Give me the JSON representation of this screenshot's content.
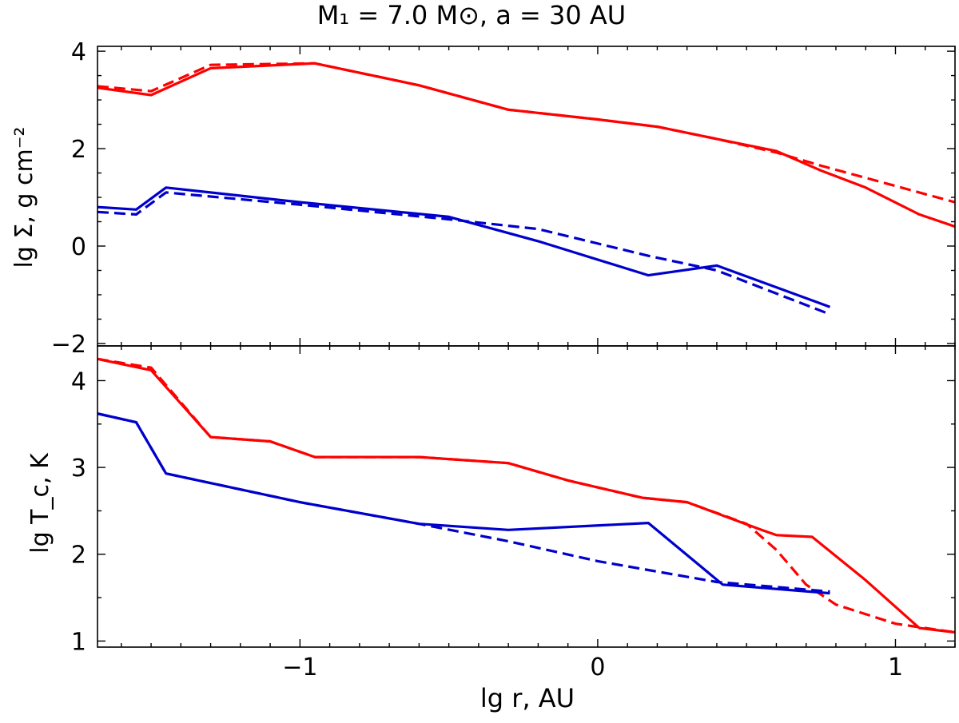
{
  "figure": {
    "title": "M₁ = 7.0 M⊙, a = 30 AU",
    "xlabel": "lg r, AU"
  },
  "chart_data": [
    {
      "type": "line",
      "ylabel": "lg Σ, g cm⁻²",
      "xlim": [
        -1.68,
        1.2
      ],
      "ylim": [
        -2.05,
        4.1
      ],
      "xticks": [
        -1,
        0,
        1
      ],
      "xtick_labels": [],
      "yticks": [
        -2,
        0,
        2,
        4
      ],
      "ytick_labels": [
        "−2",
        "0",
        "2",
        "4"
      ],
      "grid": false,
      "series": [
        {
          "color": "#ff0000",
          "style": "solid",
          "x": [
            -1.68,
            -1.5,
            -1.3,
            -0.95,
            -0.6,
            -0.3,
            0,
            0.2,
            0.4,
            0.6,
            0.75,
            0.9,
            1.08,
            1.2
          ],
          "y": [
            3.25,
            3.1,
            3.65,
            3.75,
            3.3,
            2.8,
            2.6,
            2.45,
            2.2,
            1.95,
            1.55,
            1.2,
            0.65,
            0.4
          ]
        },
        {
          "color": "#ff0000",
          "style": "dashed",
          "x": [
            -1.68,
            -1.5,
            -1.3,
            -0.95,
            -0.6,
            -0.3,
            0,
            0.2,
            0.4,
            0.6,
            0.75,
            0.9,
            1.08,
            1.2
          ],
          "y": [
            3.28,
            3.18,
            3.72,
            3.75,
            3.3,
            2.8,
            2.6,
            2.45,
            2.2,
            1.92,
            1.65,
            1.4,
            1.1,
            0.9
          ]
        },
        {
          "color": "#0000cc",
          "style": "solid",
          "x": [
            -1.68,
            -1.55,
            -1.45,
            -1.0,
            -0.5,
            -0.2,
            0.17,
            0.4,
            0.78
          ],
          "y": [
            0.8,
            0.75,
            1.2,
            0.9,
            0.6,
            0.1,
            -0.6,
            -0.4,
            -1.25
          ]
        },
        {
          "color": "#0000cc",
          "style": "dashed",
          "x": [
            -1.68,
            -1.55,
            -1.45,
            -1.0,
            -0.5,
            -0.2,
            0.17,
            0.4,
            0.78
          ],
          "y": [
            0.7,
            0.65,
            1.1,
            0.85,
            0.55,
            0.35,
            -0.2,
            -0.5,
            -1.4
          ]
        }
      ]
    },
    {
      "type": "line",
      "ylabel": "lg T_c, K",
      "xlim": [
        -1.68,
        1.2
      ],
      "ylim": [
        0.93,
        4.4
      ],
      "xticks": [
        -1,
        0,
        1
      ],
      "xtick_labels": [
        "−1",
        "0",
        "1"
      ],
      "yticks": [
        1,
        2,
        3,
        4
      ],
      "ytick_labels": [
        "1",
        "2",
        "3",
        "4"
      ],
      "grid": false,
      "series": [
        {
          "color": "#ff0000",
          "style": "solid",
          "x": [
            -1.68,
            -1.5,
            -1.3,
            -1.1,
            -0.95,
            -0.6,
            -0.3,
            -0.1,
            0.15,
            0.3,
            0.55,
            0.6,
            0.72,
            0.9,
            1.08,
            1.2
          ],
          "y": [
            4.25,
            4.12,
            3.35,
            3.3,
            3.12,
            3.12,
            3.05,
            2.85,
            2.65,
            2.6,
            2.28,
            2.22,
            2.2,
            1.7,
            1.15,
            1.1
          ]
        },
        {
          "color": "#ff0000",
          "style": "dashed",
          "x": [
            -1.68,
            -1.5,
            -1.3,
            -1.1,
            -0.95,
            -0.6,
            -0.3,
            -0.1,
            0.15,
            0.3,
            0.5,
            0.6,
            0.7,
            0.8,
            1.0,
            1.2
          ],
          "y": [
            4.25,
            4.15,
            3.35,
            3.3,
            3.12,
            3.12,
            3.05,
            2.85,
            2.65,
            2.6,
            2.35,
            2.05,
            1.65,
            1.42,
            1.2,
            1.1
          ]
        },
        {
          "color": "#0000cc",
          "style": "solid",
          "x": [
            -1.68,
            -1.55,
            -1.45,
            -1.0,
            -0.6,
            -0.3,
            0.17,
            0.42,
            0.78
          ],
          "y": [
            3.62,
            3.52,
            2.93,
            2.6,
            2.35,
            2.28,
            2.36,
            1.65,
            1.55
          ]
        },
        {
          "color": "#0000cc",
          "style": "dashed",
          "x": [
            -1.68,
            -1.55,
            -1.45,
            -1.0,
            -0.6,
            -0.3,
            0.0,
            0.4,
            0.78
          ],
          "y": [
            3.62,
            3.52,
            2.93,
            2.6,
            2.35,
            2.15,
            1.92,
            1.68,
            1.57
          ]
        }
      ]
    }
  ]
}
